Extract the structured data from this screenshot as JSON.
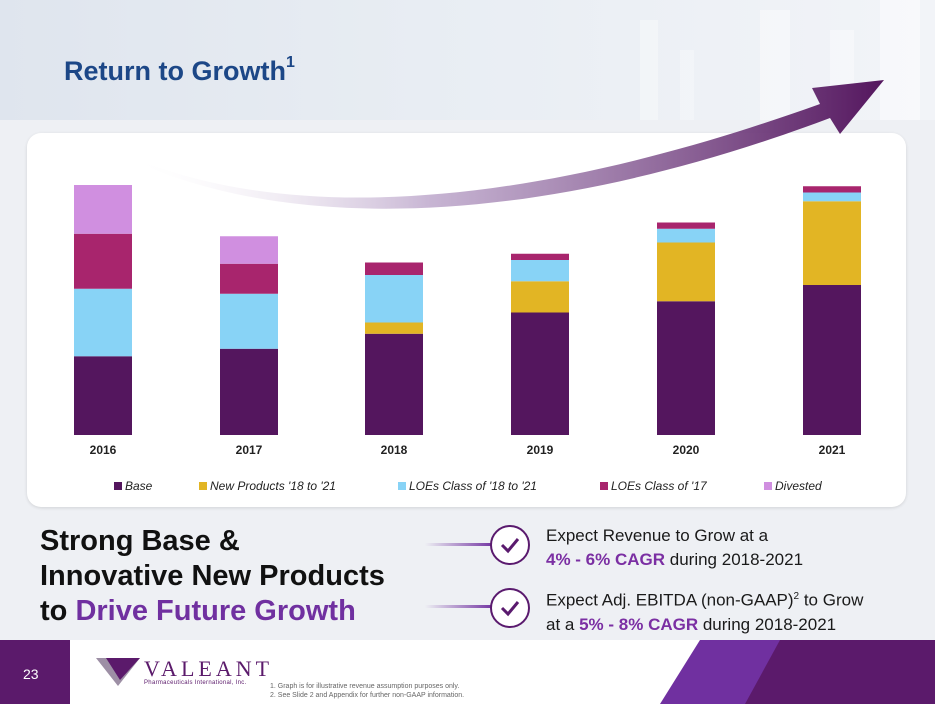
{
  "slide": {
    "title": "Return to Growth",
    "title_sup": "1",
    "page_number": "23"
  },
  "colors": {
    "base": "#54165e",
    "new_products": "#e2b524",
    "loes_18_21": "#88d3f6",
    "loes_17": "#a8256d",
    "divested": "#d08fe0",
    "accent": "#7030a0",
    "title": "#1c4787"
  },
  "chart_data": {
    "type": "bar",
    "stacked": true,
    "title": "",
    "xlabel": "",
    "ylabel": "",
    "categories": [
      "2016",
      "2017",
      "2018",
      "2019",
      "2020",
      "2021"
    ],
    "ylim": [
      0,
      100
    ],
    "series": [
      {
        "name": "Base",
        "color": "#54165e",
        "values": [
          31.5,
          34.5,
          40.5,
          49.0,
          53.5,
          60.0
        ]
      },
      {
        "name": "New Products '18 to '21",
        "color": "#e2b524",
        "values": [
          0,
          0,
          4.5,
          12.5,
          23.5,
          33.5
        ]
      },
      {
        "name": "LOEs Class of '18 to '21",
        "color": "#88d3f6",
        "values": [
          27.0,
          22.0,
          19.0,
          8.5,
          5.5,
          3.5
        ]
      },
      {
        "name": "LOEs Class of '17",
        "color": "#a8256d",
        "values": [
          22.0,
          12.0,
          5.0,
          2.5,
          2.5,
          2.5
        ]
      },
      {
        "name": "Divested",
        "color": "#d08fe0",
        "values": [
          19.5,
          11.0,
          0,
          0,
          0,
          0
        ]
      }
    ],
    "legend": [
      "Base",
      "New Products '18 to '21",
      "LOEs Class of '18 to '21",
      "LOEs Class of '17",
      "Divested"
    ],
    "legend_position": "bottom"
  },
  "headline": {
    "line1": "Strong Base &",
    "line2": "Innovative New Products",
    "line3_prefix": "to ",
    "line3_highlight": "Drive Future Growth"
  },
  "expectations": [
    {
      "line1": "Expect Revenue to Grow at a",
      "highlight": "4% - 6% CAGR",
      "suffix": " during 2018-2021"
    },
    {
      "line1_prefix": "Expect Adj. EBITDA (non-GAAP)",
      "line1_sup": "2",
      "line1_suffix": " to Grow",
      "line2_prefix": "at a ",
      "highlight": "5% - 8% CAGR",
      "suffix": " during 2018-2021"
    }
  ],
  "footer": {
    "logo": "VALEANT",
    "logo_sub": "Pharmaceuticals International, Inc.",
    "notes": [
      "1.  Graph is for illustrative revenue assumption purposes only.",
      "2.  See Slide 2 and Appendix for further non-GAAP information."
    ]
  }
}
